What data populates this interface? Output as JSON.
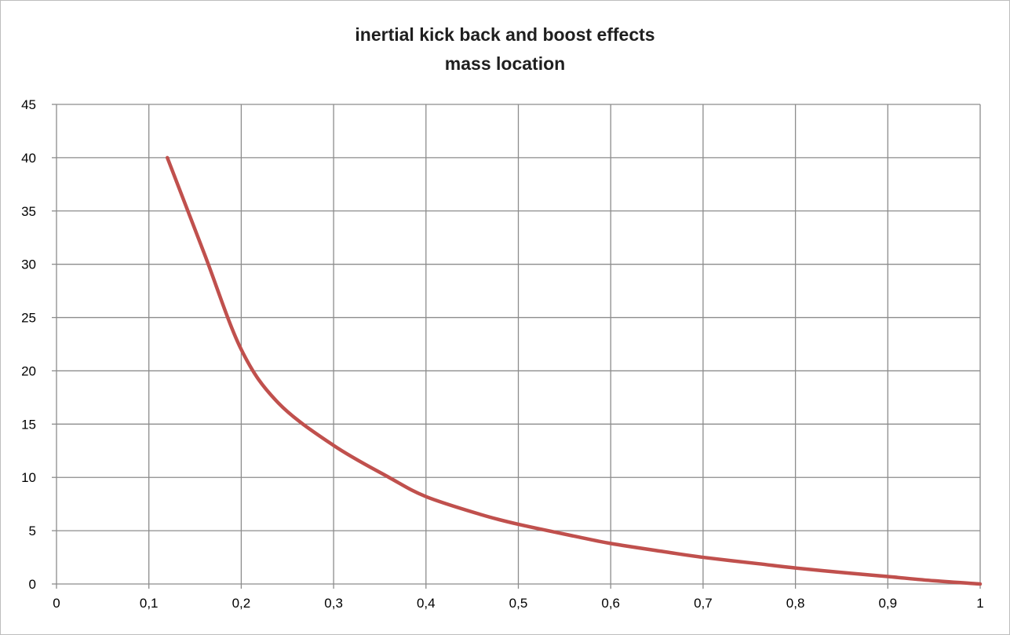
{
  "chart_data": {
    "type": "line",
    "title": [
      "inertial kick back and boost effects",
      "mass location"
    ],
    "xlabel": "",
    "ylabel": "",
    "xlim": [
      0,
      1
    ],
    "ylim": [
      0,
      45
    ],
    "x_ticks": [
      0,
      0.1,
      0.2,
      0.3,
      0.4,
      0.5,
      0.6,
      0.7,
      0.8,
      0.9,
      1
    ],
    "x_tick_labels": [
      "0",
      "0,1",
      "0,2",
      "0,3",
      "0,4",
      "0,5",
      "0,6",
      "0,7",
      "0,8",
      "0,9",
      "1"
    ],
    "y_ticks": [
      0,
      5,
      10,
      15,
      20,
      25,
      30,
      35,
      40,
      45
    ],
    "y_tick_labels": [
      "0",
      "5",
      "10",
      "15",
      "20",
      "25",
      "30",
      "35",
      "40",
      "45"
    ],
    "grid": true,
    "legend": "none",
    "series": [
      {
        "color": "#c0504d",
        "x": [
          0.12,
          0.16,
          0.2,
          0.24,
          0.3,
          0.36,
          0.4,
          0.46,
          0.5,
          0.56,
          0.6,
          0.66,
          0.7,
          0.76,
          0.8,
          0.86,
          0.9,
          0.95,
          1.0
        ],
        "y": [
          40,
          31,
          22,
          17,
          13,
          10,
          8.2,
          6.5,
          5.6,
          4.5,
          3.8,
          3.0,
          2.5,
          1.9,
          1.5,
          1.0,
          0.7,
          0.3,
          0
        ]
      }
    ]
  }
}
